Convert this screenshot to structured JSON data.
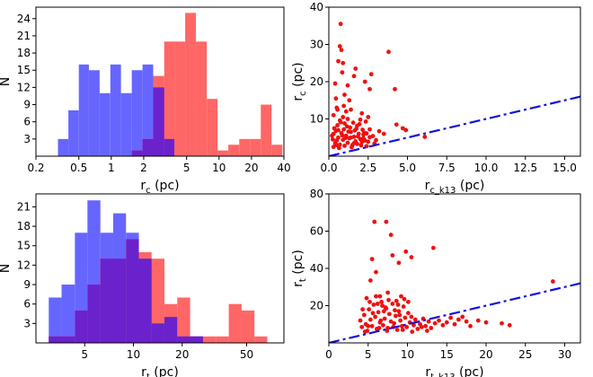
{
  "chart_data": [
    {
      "id": "hist-rc",
      "type": "histogram",
      "xscale": "log",
      "xlim": [
        0.2,
        40
      ],
      "ylim": [
        0,
        26
      ],
      "xlabel_main": "r",
      "xlabel_sub": "c",
      "xlabel_unit": " (pc)",
      "ylabel": "N",
      "xticks": [
        {
          "v": 0.2,
          "label": "0.2"
        },
        {
          "v": 0.5,
          "label": "0.5"
        },
        {
          "v": 1,
          "label": "1"
        },
        {
          "v": 2,
          "label": "2"
        },
        {
          "v": 5,
          "label": "5"
        },
        {
          "v": 10,
          "label": "10"
        },
        {
          "v": 20,
          "label": "20"
        },
        {
          "v": 40,
          "label": "40"
        }
      ],
      "yticks": [
        {
          "v": 3,
          "label": "3"
        },
        {
          "v": 6,
          "label": "6"
        },
        {
          "v": 9,
          "label": "9"
        },
        {
          "v": 12,
          "label": "12"
        },
        {
          "v": 15,
          "label": "15"
        },
        {
          "v": 18,
          "label": "18"
        },
        {
          "v": 21,
          "label": "21"
        },
        {
          "v": 24,
          "label": "24"
        }
      ],
      "series": [
        {
          "name": "blue",
          "color": "#6666ff",
          "edges": [
            0.32,
            0.4,
            0.5,
            0.62,
            0.78,
            0.98,
            1.23,
            1.55,
            1.95,
            2.45,
            3.1,
            3.85
          ],
          "counts": [
            3,
            8,
            16,
            15,
            11,
            16,
            11,
            15,
            16,
            12,
            3
          ]
        },
        {
          "name": "red",
          "color": "#ff6666",
          "edges": [
            1.55,
            1.95,
            2.45,
            3.1,
            3.85,
            4.85,
            6.1,
            7.7,
            9.7,
            12.2,
            15.4,
            19.4,
            24.4,
            30.7,
            38.7
          ],
          "counts": [
            1,
            3,
            14,
            20,
            20,
            25,
            20,
            10,
            1,
            2,
            3,
            3,
            9,
            2
          ]
        }
      ],
      "overlap_color": "#6a22cc"
    },
    {
      "id": "scatter-rc",
      "type": "scatter",
      "xlim": [
        0,
        16
      ],
      "ylim": [
        0,
        40
      ],
      "xlabel_main": "r",
      "xlabel_sub": "c_k13",
      "xlabel_unit": " (pc)",
      "ylabel_main": "r",
      "ylabel_sub": "c",
      "ylabel_unit": " (pc)",
      "xticks": [
        {
          "v": 0,
          "label": "0.0"
        },
        {
          "v": 2.5,
          "label": "2.5"
        },
        {
          "v": 5,
          "label": "5.0"
        },
        {
          "v": 7.5,
          "label": "7.5"
        },
        {
          "v": 10,
          "label": "10.0"
        },
        {
          "v": 12.5,
          "label": "12.5"
        },
        {
          "v": 15,
          "label": "15.0"
        }
      ],
      "yticks": [
        {
          "v": 10,
          "label": "10"
        },
        {
          "v": 20,
          "label": "20"
        },
        {
          "v": 30,
          "label": "30"
        },
        {
          "v": 40,
          "label": "40"
        }
      ],
      "point_color": "#ee1111",
      "line": {
        "x": [
          0,
          16
        ],
        "y": [
          0,
          16
        ],
        "color": "#1111dd",
        "style": "dashdot"
      },
      "points": [
        [
          0.3,
          2.5
        ],
        [
          0.4,
          3.5
        ],
        [
          0.5,
          4.2
        ],
        [
          0.6,
          5.0
        ],
        [
          0.7,
          3.1
        ],
        [
          0.8,
          6.2
        ],
        [
          0.9,
          4.4
        ],
        [
          1.0,
          2.8
        ],
        [
          1.1,
          5.5
        ],
        [
          1.2,
          3.6
        ],
        [
          1.3,
          4.8
        ],
        [
          1.4,
          6.5
        ],
        [
          1.5,
          3.0
        ],
        [
          1.6,
          5.2
        ],
        [
          1.7,
          4.0
        ],
        [
          1.8,
          3.3
        ],
        [
          1.9,
          6.0
        ],
        [
          2.0,
          4.6
        ],
        [
          2.1,
          3.8
        ],
        [
          2.2,
          5.8
        ],
        [
          2.3,
          4.2
        ],
        [
          2.4,
          2.7
        ],
        [
          2.5,
          3.9
        ],
        [
          2.6,
          5.1
        ],
        [
          0.35,
          7.5
        ],
        [
          0.55,
          8.3
        ],
        [
          0.75,
          9.1
        ],
        [
          0.95,
          7.2
        ],
        [
          1.15,
          8.0
        ],
        [
          1.35,
          7.7
        ],
        [
          1.55,
          9.0
        ],
        [
          1.75,
          7.4
        ],
        [
          1.95,
          8.6
        ],
        [
          2.15,
          7.1
        ],
        [
          2.35,
          9.3
        ],
        [
          0.45,
          6.8
        ],
        [
          0.65,
          2.2
        ],
        [
          0.85,
          5.6
        ],
        [
          1.05,
          4.9
        ],
        [
          1.25,
          6.6
        ],
        [
          1.45,
          2.4
        ],
        [
          1.65,
          6.9
        ],
        [
          1.85,
          5.3
        ],
        [
          2.05,
          2.9
        ],
        [
          2.25,
          6.3
        ],
        [
          0.25,
          4.5
        ],
        [
          0.3,
          6.0
        ],
        [
          0.5,
          3.0
        ],
        [
          0.6,
          7.0
        ],
        [
          0.7,
          9.6
        ],
        [
          0.9,
          10.5
        ],
        [
          1.0,
          8.8
        ],
        [
          1.2,
          10.0
        ],
        [
          1.4,
          5.0
        ],
        [
          1.6,
          3.5
        ],
        [
          1.8,
          8.2
        ],
        [
          2.0,
          9.8
        ],
        [
          2.2,
          4.8
        ],
        [
          2.4,
          6.1
        ],
        [
          2.6,
          7.2
        ],
        [
          2.8,
          5.4
        ],
        [
          3.0,
          4.3
        ],
        [
          3.2,
          6.7
        ],
        [
          2.9,
          3.4
        ],
        [
          0.45,
          15.5
        ],
        [
          0.5,
          13.0
        ],
        [
          0.6,
          25.5
        ],
        [
          0.7,
          29.5
        ],
        [
          0.75,
          35.5
        ],
        [
          0.8,
          28.5
        ],
        [
          0.85,
          22.5
        ],
        [
          0.9,
          25.0
        ],
        [
          1.0,
          16.5
        ],
        [
          1.1,
          12.0
        ],
        [
          1.2,
          19.0
        ],
        [
          1.4,
          12.5
        ],
        [
          1.6,
          21.5
        ],
        [
          1.7,
          23.5
        ],
        [
          2.1,
          11.5
        ],
        [
          2.3,
          20.0
        ],
        [
          2.6,
          18.0
        ],
        [
          2.7,
          22.0
        ],
        [
          3.8,
          28.0
        ],
        [
          4.2,
          18.0
        ],
        [
          4.3,
          8.5
        ],
        [
          4.7,
          7.5
        ],
        [
          4.9,
          7.0
        ],
        [
          6.1,
          5.2
        ],
        [
          0.3,
          11.0
        ],
        [
          0.55,
          12.5
        ],
        [
          1.3,
          15.0
        ],
        [
          0.4,
          19.5
        ],
        [
          2.5,
          10.5
        ],
        [
          0.2,
          5.5
        ],
        [
          3.5,
          6.0
        ],
        [
          0.95,
          13.5
        ]
      ]
    },
    {
      "id": "hist-rt",
      "type": "histogram",
      "xscale": "log",
      "xlim": [
        2.5,
        85
      ],
      "ylim": [
        0,
        23
      ],
      "xlabel_main": "r",
      "xlabel_sub": "t",
      "xlabel_unit": " (pc)",
      "ylabel": "N",
      "xticks": [
        {
          "v": 5,
          "label": "5"
        },
        {
          "v": 10,
          "label": "10"
        },
        {
          "v": 20,
          "label": "20"
        },
        {
          "v": 50,
          "label": "50"
        }
      ],
      "yticks": [
        {
          "v": 3,
          "label": "3"
        },
        {
          "v": 6,
          "label": "6"
        },
        {
          "v": 9,
          "label": "9"
        },
        {
          "v": 12,
          "label": "12"
        },
        {
          "v": 15,
          "label": "15"
        },
        {
          "v": 18,
          "label": "18"
        },
        {
          "v": 21,
          "label": "21"
        }
      ],
      "series": [
        {
          "name": "blue",
          "color": "#6666ff",
          "edges": [
            3.0,
            3.6,
            4.35,
            5.2,
            6.25,
            7.5,
            9.0,
            10.8,
            12.95,
            15.55,
            18.65,
            22.4,
            26.9
          ],
          "counts": [
            7,
            9,
            17,
            22,
            17,
            20,
            17,
            13,
            3,
            4,
            1,
            1
          ]
        },
        {
          "name": "red",
          "color": "#ff6666",
          "edges": [
            3.0,
            3.6,
            4.35,
            5.2,
            6.25,
            7.5,
            9.0,
            10.8,
            12.95,
            15.55,
            18.65,
            22.4,
            26.9,
            32.3,
            38.8,
            46.6,
            55.9,
            67.1
          ],
          "counts": [
            1,
            1,
            5,
            9,
            13,
            13,
            16,
            14,
            13,
            6,
            7,
            1,
            1,
            1,
            6,
            5,
            1
          ]
        }
      ],
      "overlap_color": "#6a22cc"
    },
    {
      "id": "scatter-rt",
      "type": "scatter",
      "xlim": [
        0,
        32
      ],
      "ylim": [
        0,
        80
      ],
      "xlabel_main": "r",
      "xlabel_sub": "t_k13",
      "xlabel_unit": " (pc)",
      "ylabel_main": "r",
      "ylabel_sub": "t",
      "ylabel_unit": " (pc)",
      "xticks": [
        {
          "v": 0,
          "label": "0"
        },
        {
          "v": 5,
          "label": "5"
        },
        {
          "v": 10,
          "label": "10"
        },
        {
          "v": 15,
          "label": "15"
        },
        {
          "v": 20,
          "label": "20"
        },
        {
          "v": 25,
          "label": "25"
        },
        {
          "v": 30,
          "label": "30"
        }
      ],
      "yticks": [
        {
          "v": 20,
          "label": "20"
        },
        {
          "v": 40,
          "label": "40"
        },
        {
          "v": 60,
          "label": "60"
        },
        {
          "v": 80,
          "label": "80"
        }
      ],
      "point_color": "#ee1111",
      "line": {
        "x": [
          0,
          32
        ],
        "y": [
          0,
          32
        ],
        "color": "#1111dd",
        "style": "dashdot"
      },
      "points": [
        [
          4.0,
          12.0
        ],
        [
          4.2,
          8.5
        ],
        [
          4.5,
          15.0
        ],
        [
          4.7,
          10.0
        ],
        [
          4.9,
          6.5
        ],
        [
          5.1,
          18.0
        ],
        [
          5.3,
          12.5
        ],
        [
          5.5,
          9.0
        ],
        [
          5.7,
          20.5
        ],
        [
          5.9,
          14.0
        ],
        [
          6.1,
          7.5
        ],
        [
          6.3,
          16.5
        ],
        [
          6.5,
          11.0
        ],
        [
          6.7,
          22.0
        ],
        [
          6.9,
          9.5
        ],
        [
          7.1,
          13.0
        ],
        [
          7.3,
          18.5
        ],
        [
          7.5,
          8.0
        ],
        [
          7.7,
          15.5
        ],
        [
          7.9,
          11.5
        ],
        [
          8.1,
          21.0
        ],
        [
          8.3,
          10.5
        ],
        [
          8.5,
          14.5
        ],
        [
          8.7,
          7.0
        ],
        [
          8.9,
          17.0
        ],
        [
          9.1,
          12.0
        ],
        [
          9.3,
          9.0
        ],
        [
          9.5,
          19.5
        ],
        [
          9.7,
          13.5
        ],
        [
          9.9,
          8.5
        ],
        [
          10.1,
          16.0
        ],
        [
          10.3,
          11.0
        ],
        [
          10.5,
          14.0
        ],
        [
          10.8,
          9.5
        ],
        [
          11.0,
          12.5
        ],
        [
          11.3,
          7.5
        ],
        [
          11.6,
          10.0
        ],
        [
          12.0,
          13.0
        ],
        [
          12.3,
          9.0
        ],
        [
          12.7,
          11.5
        ],
        [
          13.0,
          8.0
        ],
        [
          13.5,
          10.5
        ],
        [
          14.0,
          12.0
        ],
        [
          14.5,
          9.5
        ],
        [
          15.0,
          11.0
        ],
        [
          15.5,
          13.5
        ],
        [
          16.0,
          10.0
        ],
        [
          16.5,
          12.5
        ],
        [
          17.0,
          14.0
        ],
        [
          17.5,
          11.5
        ],
        [
          18.0,
          9.0
        ],
        [
          19.0,
          12.0
        ],
        [
          20.0,
          11.0
        ],
        [
          22.0,
          10.5
        ],
        [
          23.0,
          9.5
        ],
        [
          28.5,
          33.0
        ],
        [
          5.8,
          65.0
        ],
        [
          7.3,
          65.0
        ],
        [
          7.9,
          58.0
        ],
        [
          10.5,
          46.0
        ],
        [
          13.3,
          51.0
        ],
        [
          5.5,
          45.0
        ],
        [
          6.0,
          38.0
        ],
        [
          5.3,
          33.5
        ],
        [
          6.5,
          25.0
        ],
        [
          8.6,
          22.5
        ],
        [
          7.5,
          27.0
        ],
        [
          9.2,
          25.0
        ],
        [
          8.9,
          43.0
        ],
        [
          8.1,
          47.0
        ],
        [
          9.8,
          49.0
        ],
        [
          6.0,
          25.0
        ],
        [
          4.8,
          24.0
        ],
        [
          5.2,
          22.0
        ],
        [
          6.8,
          20.0
        ],
        [
          7.0,
          17.0
        ],
        [
          7.6,
          23.0
        ],
        [
          8.8,
          20.5
        ],
        [
          9.6,
          23.5
        ],
        [
          10.1,
          22.0
        ],
        [
          4.3,
          18.0
        ],
        [
          5.6,
          16.0
        ],
        [
          6.2,
          21.0
        ],
        [
          6.6,
          12.0
        ],
        [
          7.2,
          19.0
        ],
        [
          8.4,
          17.5
        ],
        [
          9.0,
          15.0
        ],
        [
          4.6,
          6.0
        ],
        [
          5.0,
          9.0
        ],
        [
          6.4,
          8.0
        ],
        [
          7.4,
          6.5
        ],
        [
          8.2,
          8.5
        ],
        [
          9.4,
          7.0
        ],
        [
          10.6,
          6.0
        ],
        [
          11.8,
          8.5
        ],
        [
          12.5,
          6.5
        ]
      ]
    }
  ]
}
